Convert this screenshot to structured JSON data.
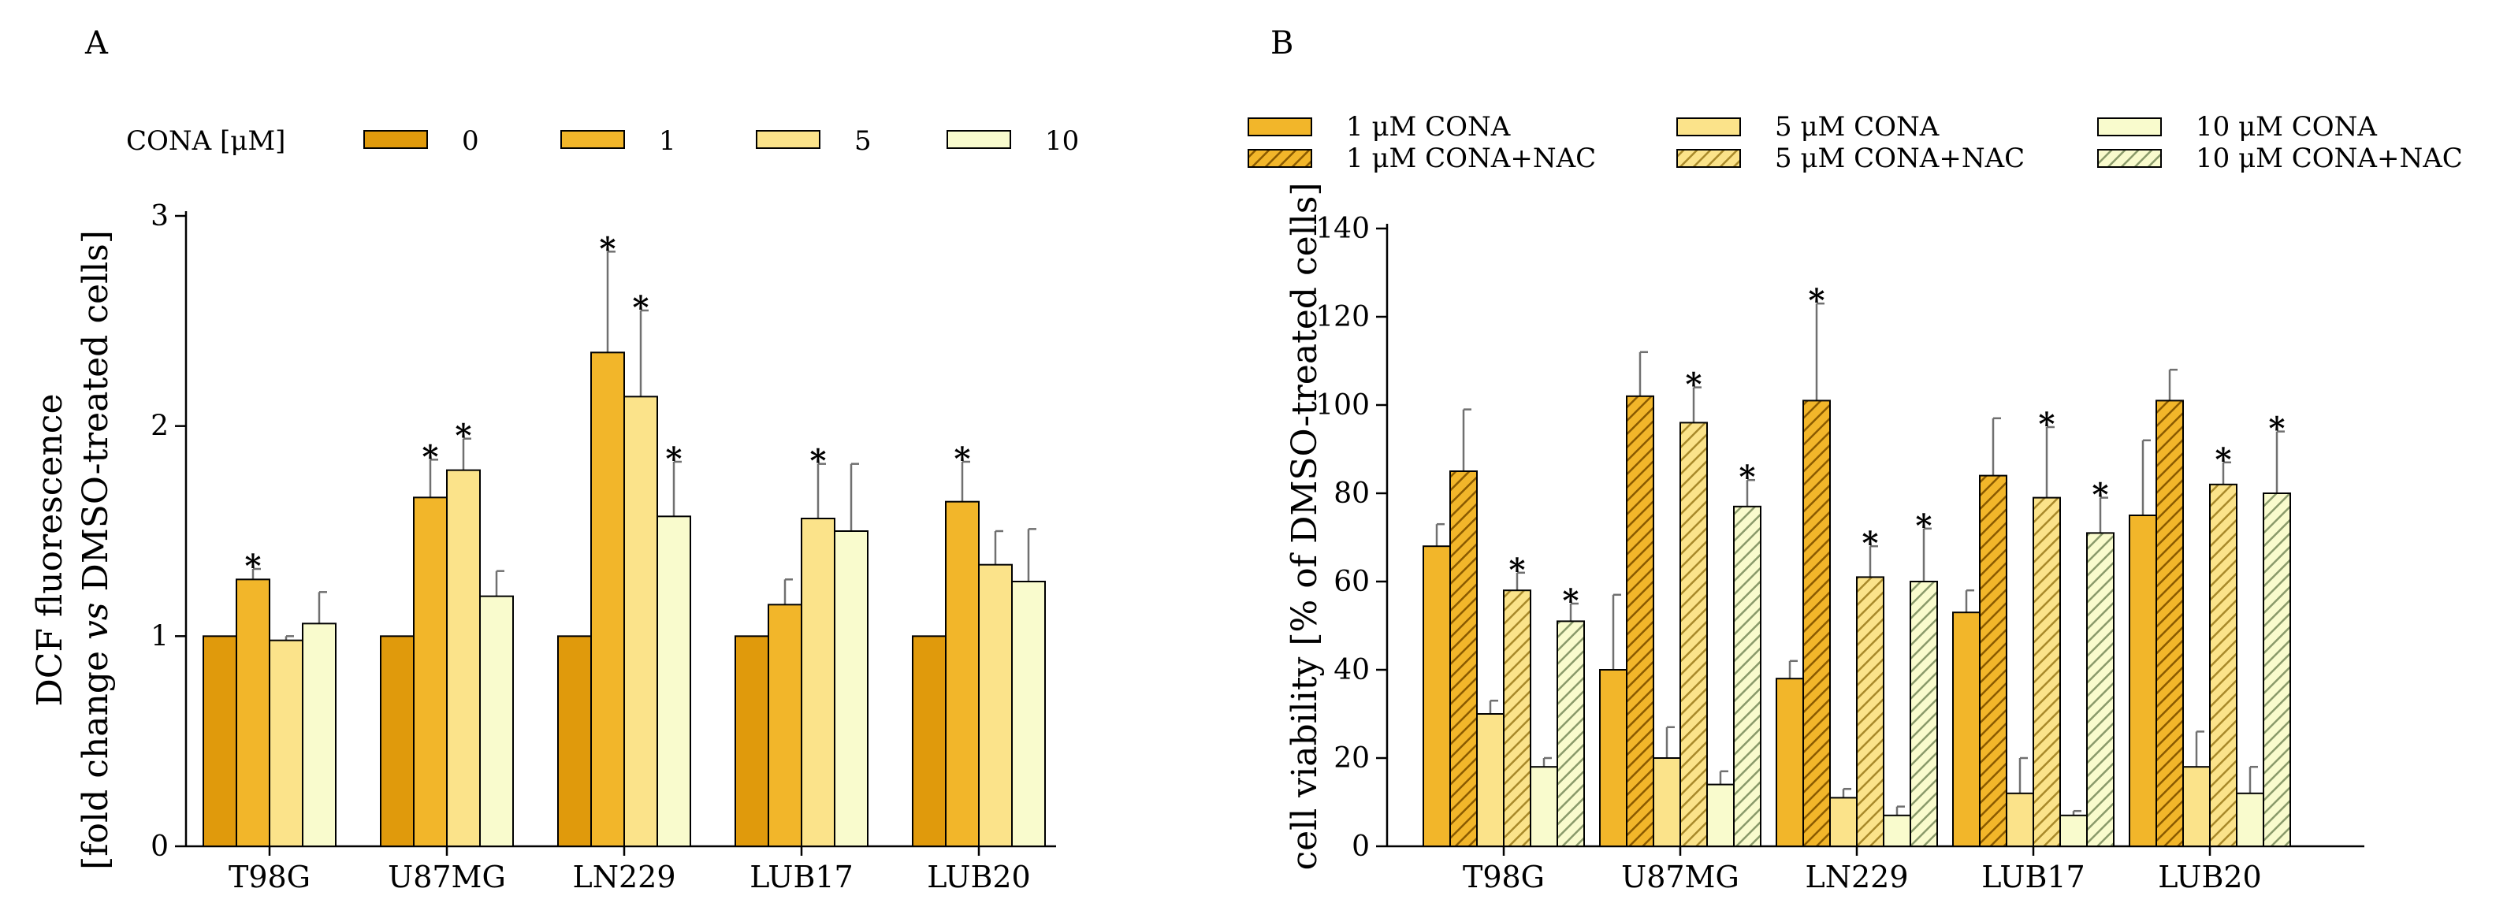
{
  "colors": {
    "c0": "#e09a0c",
    "c1": "#f2b62a",
    "c5": "#fbe38a",
    "c10": "#f9fbcd",
    "edge": "#000000",
    "errorbar": "#707070"
  },
  "chart_data": [
    {
      "panel": "A",
      "type": "bar",
      "title": "",
      "legend_title": "CONA [μM]",
      "legend_position": "top",
      "xlabel": "",
      "ylabel_parts": [
        "[fold change ",
        "vs",
        " DMSO-treated cells]"
      ],
      "ylabel_line1": "DCF fluorescence",
      "ylim": [
        0,
        3
      ],
      "yticks": [
        0,
        1,
        2,
        3
      ],
      "categories": [
        "T98G",
        "U87MG",
        "LN229",
        "LUB17",
        "LUB20"
      ],
      "series": [
        {
          "name": "0",
          "color_key": "c0",
          "hatch": false,
          "values": [
            1.0,
            1.0,
            1.0,
            1.0,
            1.0
          ],
          "errors": [
            0,
            0,
            0,
            0,
            0
          ],
          "significant": [
            false,
            false,
            false,
            false,
            false
          ]
        },
        {
          "name": "1",
          "color_key": "c1",
          "hatch": false,
          "values": [
            1.27,
            1.66,
            2.35,
            1.15,
            1.64
          ],
          "errors": [
            0.05,
            0.18,
            0.48,
            0.12,
            0.19
          ],
          "significant": [
            true,
            true,
            true,
            false,
            true
          ]
        },
        {
          "name": "5",
          "color_key": "c5",
          "hatch": false,
          "values": [
            0.98,
            1.79,
            2.14,
            1.56,
            1.34
          ],
          "errors": [
            0.02,
            0.15,
            0.41,
            0.26,
            0.16
          ],
          "significant": [
            false,
            true,
            true,
            true,
            false
          ]
        },
        {
          "name": "10",
          "color_key": "c10",
          "hatch": false,
          "values": [
            1.06,
            1.19,
            1.57,
            1.5,
            1.26
          ],
          "errors": [
            0.15,
            0.12,
            0.26,
            0.32,
            0.25
          ],
          "significant": [
            false,
            false,
            true,
            false,
            false
          ]
        }
      ]
    },
    {
      "panel": "B",
      "type": "bar",
      "title": "",
      "legend_position": "top",
      "xlabel": "",
      "ylabel": "cell viability [% of DMSO-treated cells]",
      "ylim": [
        0,
        140
      ],
      "yticks": [
        0,
        20,
        40,
        60,
        80,
        100,
        120,
        140
      ],
      "categories": [
        "T98G",
        "U87MG",
        "LN229",
        "LUB17",
        "LUB20"
      ],
      "series": [
        {
          "name": "1 μM CONA",
          "color_key": "c1",
          "hatch": false,
          "values": [
            68,
            40,
            38,
            53,
            75
          ],
          "errors": [
            5,
            17,
            4,
            5,
            17
          ],
          "significant": [
            false,
            false,
            false,
            false,
            false
          ]
        },
        {
          "name": "1 μM CONA+NAC",
          "color_key": "c1",
          "hatch": true,
          "values": [
            85,
            102,
            101,
            84,
            101
          ],
          "errors": [
            14,
            10,
            22,
            13,
            7
          ],
          "significant": [
            false,
            false,
            true,
            false,
            false
          ]
        },
        {
          "name": "5 μM CONA",
          "color_key": "c5",
          "hatch": false,
          "values": [
            30,
            20,
            11,
            12,
            18
          ],
          "errors": [
            3,
            7,
            2,
            8,
            8
          ],
          "significant": [
            false,
            false,
            false,
            false,
            false
          ]
        },
        {
          "name": "5 μM CONA+NAC",
          "color_key": "c5",
          "hatch": true,
          "values": [
            58,
            96,
            61,
            79,
            82
          ],
          "errors": [
            4,
            8,
            7,
            16,
            5
          ],
          "significant": [
            true,
            true,
            true,
            true,
            true
          ]
        },
        {
          "name": "10 μM CONA",
          "color_key": "c10",
          "hatch": false,
          "values": [
            18,
            14,
            7,
            7,
            12
          ],
          "errors": [
            2,
            3,
            2,
            1,
            6
          ],
          "significant": [
            false,
            false,
            false,
            false,
            false
          ]
        },
        {
          "name": "10 μM CONA+NAC",
          "color_key": "c10",
          "hatch": true,
          "values": [
            51,
            77,
            60,
            71,
            80
          ],
          "errors": [
            4,
            6,
            12,
            8,
            14
          ],
          "significant": [
            true,
            true,
            true,
            true,
            true
          ]
        }
      ]
    }
  ]
}
